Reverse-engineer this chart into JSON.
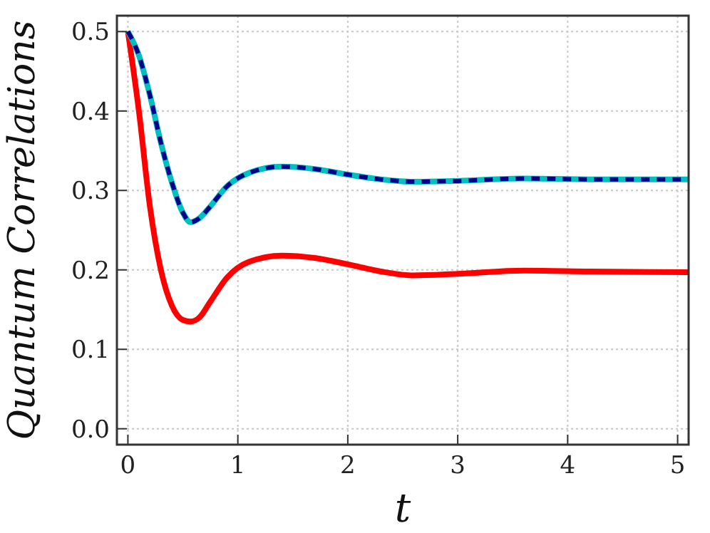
{
  "chart_data": {
    "type": "line",
    "xlabel": "t",
    "ylabel": "Quantum Correlations",
    "xlim": [
      -0.1,
      5.1
    ],
    "ylim": [
      -0.02,
      0.52
    ],
    "xticks": [
      0,
      1,
      2,
      3,
      4,
      5
    ],
    "yticks": [
      {
        "value": 0,
        "label": "0.0"
      },
      0.1,
      0.2,
      0.3,
      0.4,
      0.5
    ],
    "grid": true,
    "x": [
      0,
      0.1,
      0.2,
      0.3,
      0.4,
      0.5,
      0.57,
      0.65,
      0.75,
      0.9,
      1.1,
      1.4,
      1.7,
      2.0,
      2.3,
      2.6,
      3.0,
      3.6,
      4.2,
      5.1
    ],
    "series": [
      {
        "color": "#ff0000",
        "line_style": "solid",
        "values": [
          0.5,
          0.4,
          0.28,
          0.2,
          0.155,
          0.137,
          0.135,
          0.14,
          0.16,
          0.19,
          0.21,
          0.218,
          0.215,
          0.207,
          0.198,
          0.193,
          0.195,
          0.199,
          0.198,
          0.197
        ]
      },
      {
        "color": "#00bfbf",
        "line_style": "solid",
        "values": [
          0.5,
          0.47,
          0.42,
          0.36,
          0.31,
          0.272,
          0.26,
          0.265,
          0.28,
          0.305,
          0.322,
          0.33,
          0.327,
          0.32,
          0.314,
          0.311,
          0.312,
          0.315,
          0.314,
          0.314
        ]
      },
      {
        "color": "#00008b",
        "line_style": "dashed",
        "values": [
          0.5,
          0.47,
          0.42,
          0.36,
          0.31,
          0.272,
          0.26,
          0.265,
          0.28,
          0.305,
          0.322,
          0.33,
          0.327,
          0.32,
          0.314,
          0.311,
          0.312,
          0.315,
          0.314,
          0.314
        ]
      }
    ]
  }
}
